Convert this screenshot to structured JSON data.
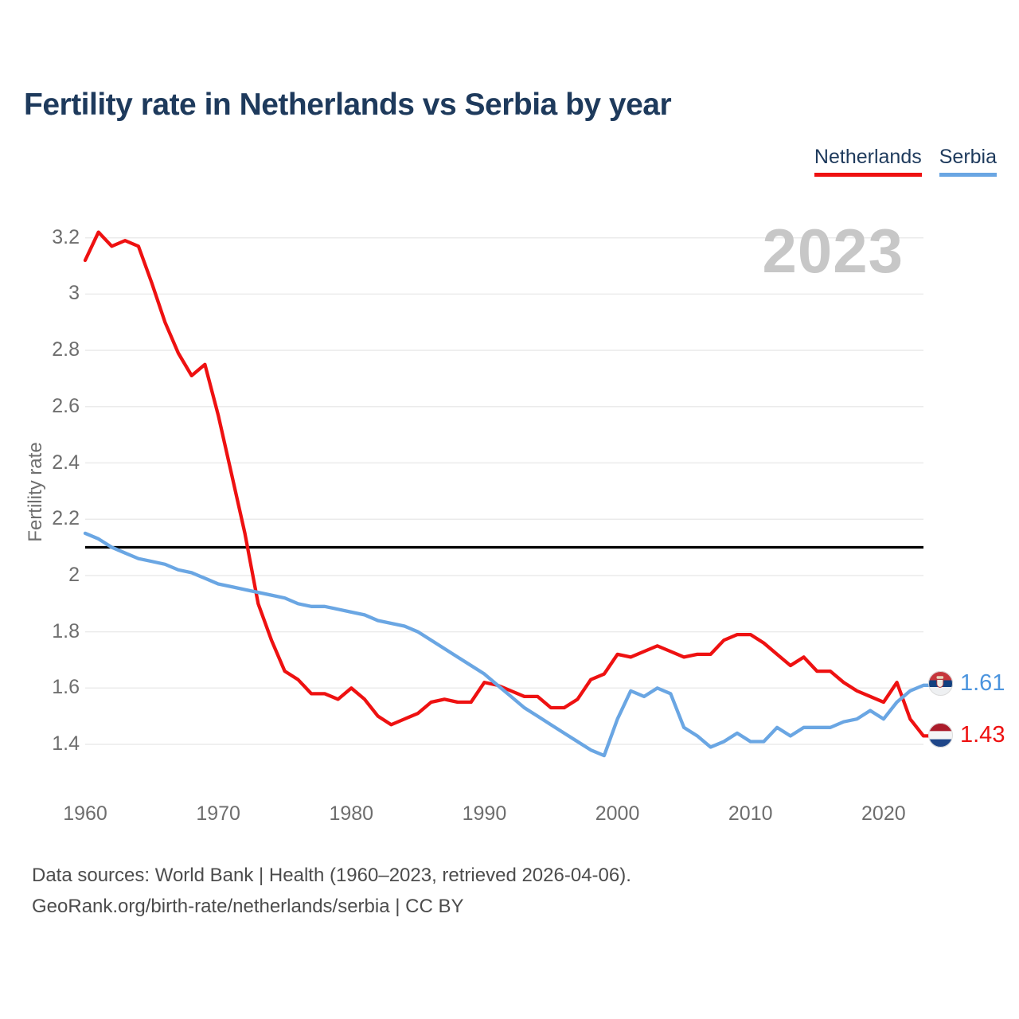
{
  "header": {
    "title": "Fertility rate in Netherlands vs Serbia by year"
  },
  "legend": {
    "items": [
      {
        "label": "Netherlands",
        "color": "#ee1111"
      },
      {
        "label": "Serbia",
        "color": "#6aa6e3"
      }
    ]
  },
  "watermark": "2023",
  "chart_data": {
    "type": "line",
    "title": "Fertility rate in Netherlands vs Serbia by year",
    "xlabel": "",
    "ylabel": "Fertility rate",
    "years": [
      1960,
      1961,
      1962,
      1963,
      1964,
      1965,
      1966,
      1967,
      1968,
      1969,
      1970,
      1971,
      1972,
      1973,
      1974,
      1975,
      1976,
      1977,
      1978,
      1979,
      1980,
      1981,
      1982,
      1983,
      1984,
      1985,
      1986,
      1987,
      1988,
      1989,
      1990,
      1991,
      1992,
      1993,
      1994,
      1995,
      1996,
      1997,
      1998,
      1999,
      2000,
      2001,
      2002,
      2003,
      2004,
      2005,
      2006,
      2007,
      2008,
      2009,
      2010,
      2011,
      2012,
      2013,
      2014,
      2015,
      2016,
      2017,
      2018,
      2019,
      2020,
      2021,
      2022,
      2023
    ],
    "series": [
      {
        "name": "Netherlands",
        "color": "#ee1111",
        "values": [
          3.12,
          3.22,
          3.17,
          3.19,
          3.17,
          3.04,
          2.9,
          2.79,
          2.71,
          2.75,
          2.57,
          2.36,
          2.15,
          1.9,
          1.77,
          1.66,
          1.63,
          1.58,
          1.58,
          1.56,
          1.6,
          1.56,
          1.5,
          1.47,
          1.49,
          1.51,
          1.55,
          1.56,
          1.55,
          1.55,
          1.62,
          1.61,
          1.59,
          1.57,
          1.57,
          1.53,
          1.53,
          1.56,
          1.63,
          1.65,
          1.72,
          1.71,
          1.73,
          1.75,
          1.73,
          1.71,
          1.72,
          1.72,
          1.77,
          1.79,
          1.79,
          1.76,
          1.72,
          1.68,
          1.71,
          1.66,
          1.66,
          1.62,
          1.59,
          1.57,
          1.55,
          1.62,
          1.49,
          1.43
        ]
      },
      {
        "name": "Serbia",
        "color": "#6aa6e3",
        "values": [
          2.15,
          2.13,
          2.1,
          2.08,
          2.06,
          2.05,
          2.04,
          2.02,
          2.01,
          1.99,
          1.97,
          1.96,
          1.95,
          1.94,
          1.93,
          1.92,
          1.9,
          1.89,
          1.89,
          1.88,
          1.87,
          1.86,
          1.84,
          1.83,
          1.82,
          1.8,
          1.77,
          1.74,
          1.71,
          1.68,
          1.65,
          1.61,
          1.57,
          1.53,
          1.5,
          1.47,
          1.44,
          1.41,
          1.38,
          1.36,
          1.49,
          1.59,
          1.57,
          1.6,
          1.58,
          1.46,
          1.43,
          1.39,
          1.41,
          1.44,
          1.41,
          1.41,
          1.46,
          1.43,
          1.46,
          1.46,
          1.46,
          1.48,
          1.49,
          1.52,
          1.49,
          1.55,
          1.59,
          1.61
        ]
      }
    ],
    "yticks": [
      1.4,
      1.6,
      1.8,
      2.0,
      2.2,
      2.4,
      2.6,
      2.8,
      3.0,
      3.2
    ],
    "xticks": [
      1960,
      1970,
      1980,
      1990,
      2000,
      2010,
      2020
    ],
    "ylim": [
      1.4,
      3.2
    ],
    "grid": "horizontal",
    "legend_position": "top-right",
    "reference_line": {
      "value": 2.1,
      "color": "#000000"
    }
  },
  "end_labels": {
    "serbia": {
      "value": "1.61",
      "color": "#4b94de",
      "flag": "serbia-flag"
    },
    "netherlands": {
      "value": "1.43",
      "color": "#ee1111",
      "flag": "netherlands-flag"
    }
  },
  "footer": {
    "line1": "Data sources: World Bank | Health (1960–2023, retrieved 2026-04-06).",
    "line2": "GeoRank.org/birth-rate/netherlands/serbia | CC BY"
  }
}
